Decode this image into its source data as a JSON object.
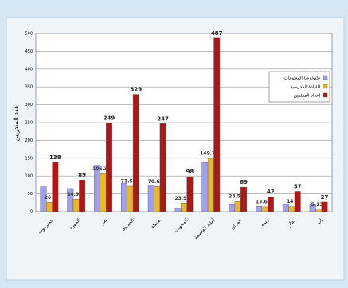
{
  "chart_data": {
    "type": "bar",
    "y_label": "عدد المتدربين",
    "categories": [
      "حضرموت",
      "المهرة",
      "تعز",
      "الحديدة",
      "صنعاء",
      "المحويت",
      "أمانة العاصمة",
      "عمران",
      "ريمة",
      "ذمار",
      "إب"
    ],
    "series": [
      {
        "name": "تكنولوجيا المعلومات",
        "color": "#a0a0f0",
        "values": [
          70,
          65,
          130,
          80,
          75,
          10,
          138,
          20,
          15,
          20,
          20
        ]
      },
      {
        "name": "القيادة المدرسية",
        "color": "#e8b828",
        "values": [
          26,
          34.94,
          106.33,
          71.52,
          70.63,
          23.92,
          149.76,
          28.55,
          13.66,
          14,
          5.13
        ]
      },
      {
        "name": "إعداد المعلمين",
        "color": "#b01616",
        "values": [
          138,
          89,
          249,
          329,
          247,
          98,
          487,
          69,
          42,
          57,
          27
        ]
      }
    ],
    "ylim": [
      0,
      500
    ],
    "yticks": [
      0,
      50,
      100,
      150,
      200,
      250,
      300,
      350,
      400,
      450,
      500
    ],
    "grid": true
  }
}
